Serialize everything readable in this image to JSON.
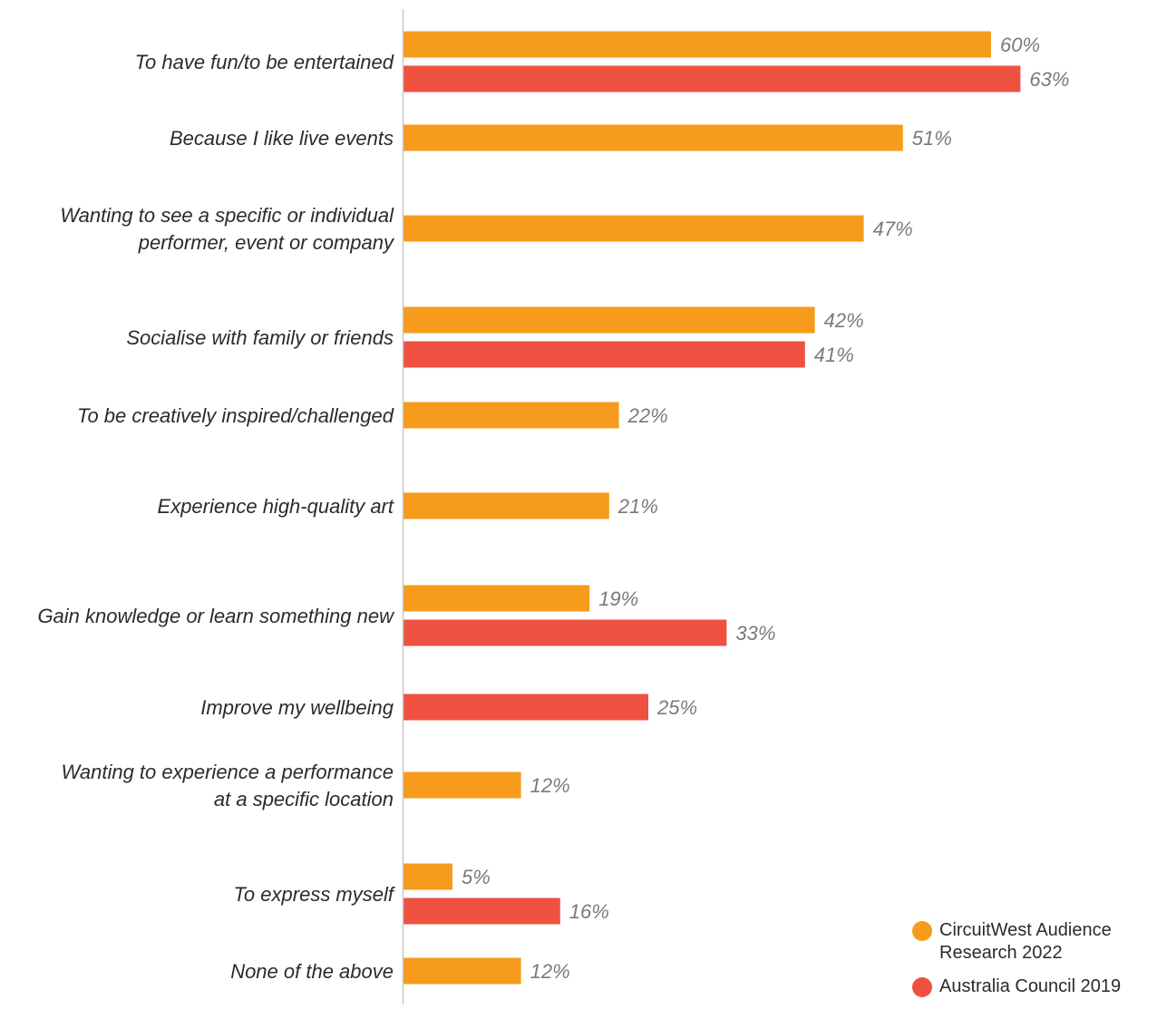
{
  "colors": {
    "circuitwest": "#f79b1c",
    "australia_council": "#ef5140",
    "axis": "#c8c8c8"
  },
  "legend": {
    "series_a": "CircuitWest Audience Research 2022",
    "series_b": "Australia Council 2019"
  },
  "chart_data": {
    "type": "bar",
    "orientation": "horizontal",
    "categories": [
      [
        "To have fun/to be entertained"
      ],
      [
        "Because I like live events"
      ],
      [
        "Wanting to see a specific or individual",
        "performer, event or company"
      ],
      [
        "Socialise with family or friends"
      ],
      [
        "To be creatively inspired/challenged"
      ],
      [
        "Experience high-quality art"
      ],
      [
        "Gain knowledge or learn something new"
      ],
      [
        "Improve my wellbeing"
      ],
      [
        "Wanting to experience a performance",
        "at a specific location"
      ],
      [
        "To express myself"
      ],
      [
        "None of the above"
      ]
    ],
    "series": [
      {
        "name": "CircuitWest Audience Research 2022",
        "color": "#f79b1c",
        "values": [
          60,
          51,
          47,
          42,
          22,
          21,
          19,
          null,
          12,
          5,
          12
        ]
      },
      {
        "name": "Australia Council 2019",
        "color": "#ef5140",
        "values": [
          63,
          null,
          null,
          41,
          null,
          null,
          33,
          25,
          null,
          16,
          null
        ]
      }
    ],
    "value_suffix": "%",
    "xlim": [
      0,
      100
    ],
    "grid": false,
    "legend_position": "bottom-right"
  }
}
